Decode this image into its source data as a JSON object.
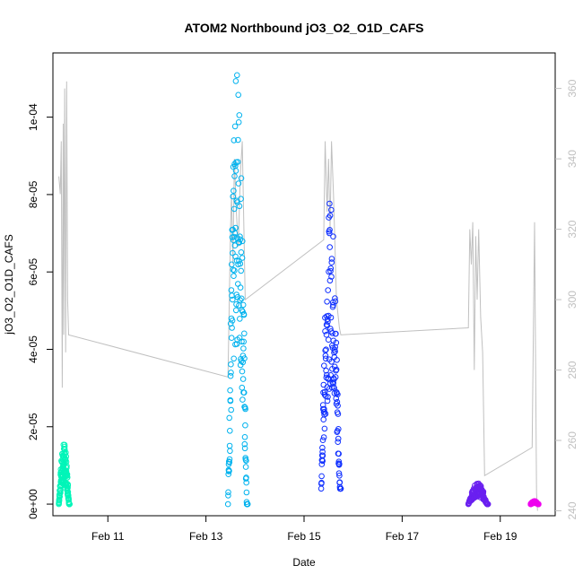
{
  "chart_data": {
    "type": "scatter",
    "title": "ATOM2 Northbound jO3_O2_O1D_CAFS",
    "xlabel": "Date",
    "ylabel": "jO3_O2_O1D_CAFS",
    "x_axis": {
      "range_days": [
        9.88,
        20.12
      ],
      "ticks": [
        {
          "day": 11,
          "label": "Feb 11"
        },
        {
          "day": 13,
          "label": "Feb 13"
        },
        {
          "day": 15,
          "label": "Feb 15"
        },
        {
          "day": 17,
          "label": "Feb 17"
        },
        {
          "day": 19,
          "label": "Feb 19"
        }
      ]
    },
    "y_axis": {
      "range": [
        -3e-06,
        0.0001166
      ],
      "ticks": [
        {
          "value": 0,
          "label": "0e+00"
        },
        {
          "value": 2e-05,
          "label": "2e-05"
        },
        {
          "value": 4e-05,
          "label": "4e-05"
        },
        {
          "value": 6e-05,
          "label": "6e-05"
        },
        {
          "value": 8e-05,
          "label": "8e-05"
        },
        {
          "value": 0.0001,
          "label": "1e-04"
        }
      ]
    },
    "y2_axis": {
      "range": [
        238.6,
        370.1
      ],
      "color": "#c0c0c0",
      "ticks": [
        {
          "value": 240,
          "label": "240"
        },
        {
          "value": 260,
          "label": "260"
        },
        {
          "value": 280,
          "label": "280"
        },
        {
          "value": 300,
          "label": "300"
        },
        {
          "value": 320,
          "label": "320"
        },
        {
          "value": 340,
          "label": "340"
        },
        {
          "value": 360,
          "label": "360"
        }
      ]
    },
    "grid": false,
    "series": [
      {
        "color": "#00f5b8",
        "day_range": [
          10.0,
          10.22
        ],
        "y_max": 1.6e-05,
        "y_min": 0.0
      },
      {
        "color": "#00b2ee",
        "day_range": [
          13.45,
          13.85
        ],
        "y_max": 0.000114,
        "y_min": 0.0
      },
      {
        "color": "#1030ff",
        "day_range": [
          15.35,
          15.75
        ],
        "y_max": 7.9e-05,
        "y_min": 4e-06
      },
      {
        "color": "#6a20f0",
        "day_range": [
          18.35,
          18.75
        ],
        "y_max": 5.5e-06,
        "y_min": 0.0
      },
      {
        "color": "#ee00ee",
        "day_range": [
          19.62,
          19.78
        ],
        "y_max": 8e-07,
        "y_min": 0.0
      }
    ],
    "secondary_line": {
      "color": "#c0c0c0",
      "points": [
        [
          10.0,
          335
        ],
        [
          10.03,
          330
        ],
        [
          10.05,
          345
        ],
        [
          10.07,
          275
        ],
        [
          10.09,
          350
        ],
        [
          10.1,
          290
        ],
        [
          10.12,
          360
        ],
        [
          10.14,
          285
        ],
        [
          10.16,
          362
        ],
        [
          10.18,
          300
        ],
        [
          10.2,
          290
        ],
        [
          13.45,
          278
        ],
        [
          13.5,
          320
        ],
        [
          13.52,
          330
        ],
        [
          13.55,
          310
        ],
        [
          13.58,
          340
        ],
        [
          13.62,
          325
        ],
        [
          13.66,
          315
        ],
        [
          13.7,
          335
        ],
        [
          13.74,
          345
        ],
        [
          13.8,
          300
        ],
        [
          15.4,
          317
        ],
        [
          15.43,
          345
        ],
        [
          15.47,
          325
        ],
        [
          15.5,
          340
        ],
        [
          15.53,
          320
        ],
        [
          15.56,
          345
        ],
        [
          15.6,
          330
        ],
        [
          15.63,
          315
        ],
        [
          15.66,
          300
        ],
        [
          15.72,
          292
        ],
        [
          15.75,
          290
        ],
        [
          18.35,
          292
        ],
        [
          18.38,
          320
        ],
        [
          18.41,
          310
        ],
        [
          18.44,
          322
        ],
        [
          18.47,
          280
        ],
        [
          18.5,
          318
        ],
        [
          18.53,
          300
        ],
        [
          18.56,
          320
        ],
        [
          18.6,
          295
        ],
        [
          18.64,
          285
        ],
        [
          18.68,
          250
        ],
        [
          19.65,
          258
        ],
        [
          19.7,
          322
        ],
        [
          19.74,
          245
        ],
        [
          19.76,
          240
        ]
      ]
    }
  }
}
